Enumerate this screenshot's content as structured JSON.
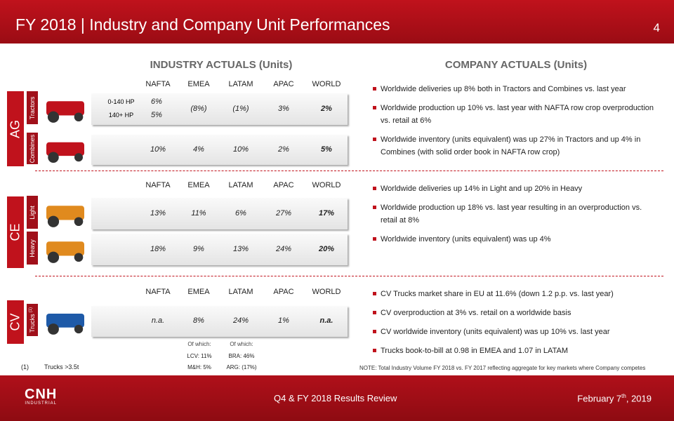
{
  "header": {
    "title": "FY 2018 | Industry and Company Unit Performances",
    "page_number": "4"
  },
  "industry": {
    "heading": "INDUSTRY ACTUALS (Units)"
  },
  "company": {
    "heading": "COMPANY ACTUALS (Units)"
  },
  "sections": [
    {
      "segment": "AG",
      "columns": [
        "NAFTA",
        "EMEA",
        "LATAM",
        "APAC",
        "WORLD"
      ],
      "rows": [
        {
          "label": "Tractors",
          "split_labels": [
            "0-140 HP",
            "140+ HP"
          ],
          "split_values": [
            "6%",
            "5%"
          ],
          "cells": [
            "(8%)",
            "(1%)",
            "3%",
            "2%"
          ]
        },
        {
          "label": "Combines",
          "cells": [
            "10%",
            "4%",
            "10%",
            "2%",
            "5%"
          ]
        }
      ],
      "bullets": [
        "Worldwide deliveries up 8% both in Tractors and Combines vs. last year",
        "Worldwide production up 10% vs. last year with NAFTA row crop overproduction vs. retail at 6%",
        "Worldwide inventory (units equivalent) was up 27% in Tractors and up 4% in Combines (with solid order book in NAFTA row crop)"
      ]
    },
    {
      "segment": "CE",
      "columns": [
        "NAFTA",
        "EMEA",
        "LATAM",
        "APAC",
        "WORLD"
      ],
      "rows": [
        {
          "label": "Light",
          "cells": [
            "13%",
            "11%",
            "6%",
            "27%",
            "17%"
          ]
        },
        {
          "label": "Heavy",
          "cells": [
            "18%",
            "9%",
            "13%",
            "24%",
            "20%"
          ]
        }
      ],
      "bullets": [
        "Worldwide deliveries up 14% in Light  and up 20% in Heavy",
        "Worldwide production up 18% vs. last year resulting in an overproduction vs. retail at 8%",
        "Worldwide inventory (units equivalent) was up 4%"
      ]
    },
    {
      "segment": "CV",
      "columns": [
        "NAFTA",
        "EMEA",
        "LATAM",
        "APAC",
        "WORLD"
      ],
      "rows": [
        {
          "label": "Trucks",
          "label_note": "(1)",
          "cells": [
            "n.a.",
            "8%",
            "24%",
            "1%",
            "n.a."
          ]
        }
      ],
      "breakdown": [
        {
          "heading": "Of which:",
          "lines": [
            "LCV: 11%",
            "M&H: 5%"
          ]
        },
        {
          "heading": "Of which:",
          "lines": [
            "BRA: 46%",
            "ARG: (17%)"
          ]
        }
      ],
      "bullets": [
        "CV Trucks market share in EU at 11.6% (down 1.2 p.p. vs. last year)",
        "CV overproduction at 3% vs. retail on a worldwide basis",
        "CV worldwide inventory (units equivalent)  was up 10% vs. last year",
        "Trucks book-to-bill at 0.98 in EMEA and 1.07 in LATAM"
      ]
    }
  ],
  "footnote": {
    "marker": "(1)",
    "text": "Trucks >3.5t"
  },
  "note": "NOTE: Total Industry Volume FY 2018 vs. FY 2017 reflecting aggregate for key markets where Company competes",
  "footer": {
    "logo": [
      "CNH",
      "INDUSTRIAL"
    ],
    "event": "Q4 & FY 2018 Results Review",
    "date_parts": [
      "February 7",
      "th",
      ", 2019"
    ]
  }
}
